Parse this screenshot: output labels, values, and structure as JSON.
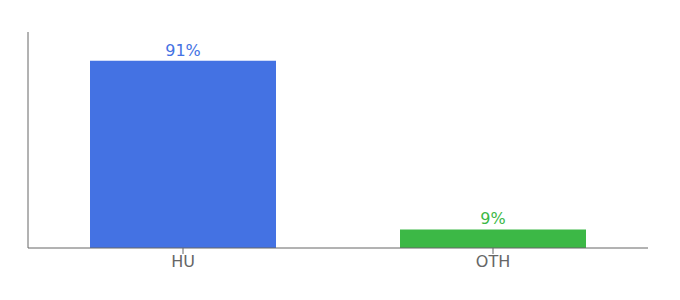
{
  "chart_data": {
    "type": "bar",
    "categories": [
      "HU",
      "OTH"
    ],
    "values": [
      91,
      9
    ],
    "value_labels": [
      "91%",
      "9%"
    ],
    "colors": [
      "#4472E3",
      "#3CB846"
    ],
    "ylim": [
      0,
      105
    ],
    "data_labels": true,
    "tick_labels": "x",
    "grid": false
  }
}
